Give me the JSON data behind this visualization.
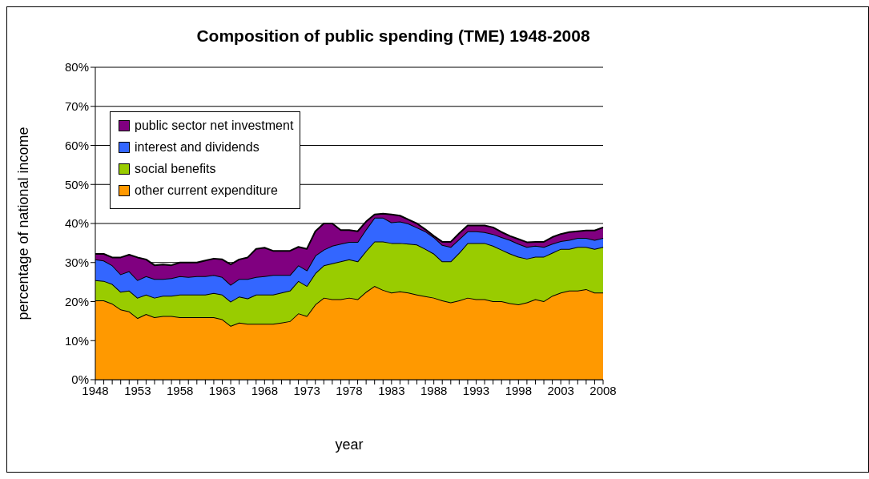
{
  "chart_data": {
    "type": "area",
    "stacked": true,
    "title": "Composition of public spending (TME) 1948-2008",
    "xlabel": "year",
    "ylabel": "percentage of national income",
    "categories": [
      "1948",
      null,
      null,
      null,
      null,
      "1953",
      null,
      null,
      null,
      null,
      "1958",
      null,
      null,
      null,
      null,
      "1963",
      null,
      null,
      null,
      null,
      "1968",
      null,
      null,
      null,
      null,
      "1973",
      null,
      null,
      null,
      null,
      "1978",
      null,
      null,
      null,
      null,
      "1983",
      null,
      null,
      null,
      null,
      "1988",
      null,
      null,
      null,
      null,
      "1993",
      null,
      null,
      null,
      null,
      "1998",
      null,
      null,
      null,
      null,
      "2003",
      null,
      null,
      null,
      null,
      "2008"
    ],
    "series": [
      {
        "name": "other current expenditure",
        "color": "#ff9900",
        "values": [
          20.3,
          20.3,
          19.5,
          18,
          17.5,
          15.8,
          16.8,
          16,
          16.3,
          16.3,
          16,
          16,
          16,
          16,
          16,
          15.5,
          13.8,
          14.6,
          14.3,
          14.3,
          14.3,
          14.3,
          14.6,
          15,
          17,
          16.3,
          19.3,
          21,
          20.6,
          20.6,
          21,
          20.6,
          22.5,
          24,
          23,
          22.3,
          22.6,
          22.3,
          21.8,
          21.4,
          21,
          20.3,
          19.8,
          20.3,
          21,
          20.6,
          20.6,
          20.1,
          20.1,
          19.6,
          19.3,
          19.8,
          20.6,
          20.1,
          21.5,
          22.3,
          22.8,
          22.8,
          23.2,
          22.3,
          22.3
        ]
      },
      {
        "name": "social benefits",
        "color": "#99cc00",
        "values": [
          5.2,
          5.0,
          5.0,
          4.5,
          5.3,
          5.2,
          5.0,
          5.0,
          5.2,
          5.2,
          5.8,
          5.8,
          5.8,
          5.8,
          6.2,
          6.3,
          6.2,
          6.7,
          6.5,
          7.5,
          7.5,
          7.5,
          7.7,
          7.8,
          8.3,
          7.7,
          8.0,
          8.3,
          9.2,
          9.7,
          9.8,
          9.7,
          10.5,
          11.4,
          12.4,
          12.7,
          12.4,
          12.5,
          12.8,
          12.1,
          11.3,
          10.0,
          10.5,
          12.2,
          14.0,
          14.4,
          14.4,
          14.2,
          13.2,
          12.7,
          12.2,
          11.2,
          10.9,
          11.4,
          11.0,
          11.2,
          10.7,
          11.2,
          10.8,
          11.2,
          11.7
        ]
      },
      {
        "name": "interest and dividends",
        "color": "#3366ff",
        "values": [
          5.3,
          5.2,
          4.8,
          4.5,
          5.0,
          4.5,
          4.7,
          4.8,
          4.3,
          4.5,
          4.7,
          4.5,
          4.7,
          4.7,
          4.6,
          4.5,
          4.3,
          4.5,
          5.0,
          4.5,
          4.7,
          5.0,
          4.5,
          4.0,
          4.0,
          4.0,
          4.5,
          4.0,
          4.5,
          4.5,
          4.5,
          5.0,
          5.5,
          6.1,
          6.1,
          5.3,
          5.5,
          5.2,
          4.4,
          4.5,
          4.2,
          4.2,
          3.7,
          3.5,
          3.0,
          3.0,
          2.8,
          3.0,
          3.2,
          3.5,
          3.3,
          3.0,
          2.8,
          2.5,
          2.3,
          2.0,
          2.3,
          2.3,
          2.3,
          2.3,
          2.3
        ]
      },
      {
        "name": "public sector net investment",
        "color": "#800080",
        "values": [
          1.4,
          1.7,
          2.0,
          4.3,
          4.2,
          5.8,
          4.3,
          3.5,
          3.7,
          3.3,
          3.5,
          3.7,
          3.5,
          4.0,
          4.2,
          4.5,
          5.2,
          5.0,
          5.5,
          7.2,
          7.3,
          6.2,
          6.2,
          6.2,
          4.7,
          5.5,
          6.2,
          6.7,
          5.7,
          3.5,
          3.0,
          2.7,
          2.0,
          0.8,
          1.0,
          2.0,
          1.5,
          1.0,
          1.0,
          0.5,
          0.3,
          0.8,
          1.3,
          1.5,
          1.5,
          1.5,
          1.7,
          1.7,
          1.3,
          1.0,
          1.2,
          1.2,
          1.0,
          1.3,
          1.7,
          1.8,
          2.0,
          1.7,
          1.9,
          2.4,
          2.7
        ]
      }
    ],
    "ylim": [
      0,
      80
    ],
    "yticks": [
      {
        "value": 0,
        "label": "0%"
      },
      {
        "value": 10,
        "label": "10%"
      },
      {
        "value": 20,
        "label": "20%"
      },
      {
        "value": 30,
        "label": "30%"
      },
      {
        "value": 40,
        "label": "40%"
      },
      {
        "value": 50,
        "label": "50%"
      },
      {
        "value": 60,
        "label": "60%"
      },
      {
        "value": 70,
        "label": "70%"
      },
      {
        "value": 80,
        "label": "80%"
      }
    ],
    "grid": "y",
    "legend": "top left"
  }
}
